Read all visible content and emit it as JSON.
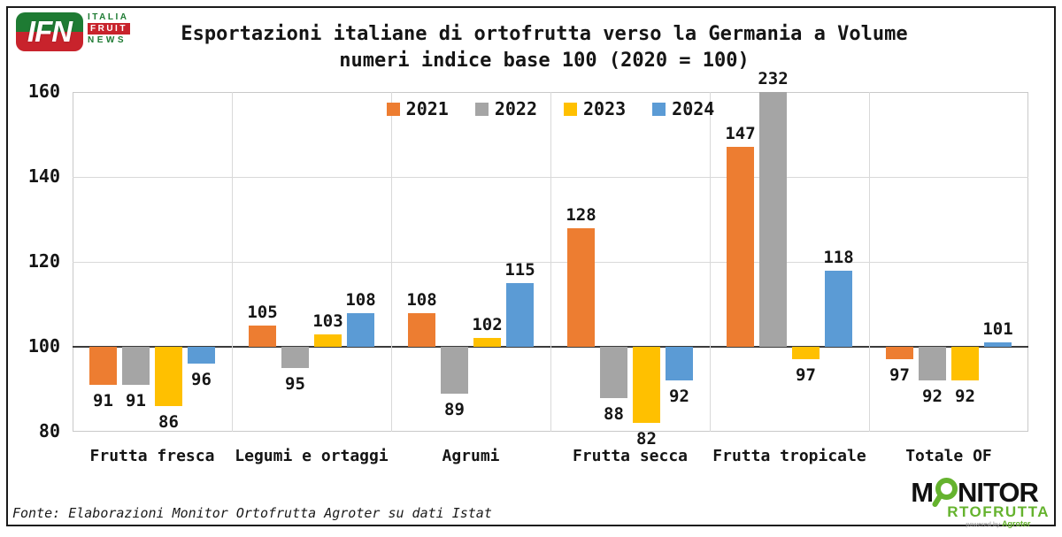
{
  "header": {
    "title_line1": "Esportazioni italiane di ortofrutta verso la Germania a Volume",
    "title_line2": "numeri indice base 100 (2020 = 100)",
    "ifn_logo": {
      "monogram": "IFN",
      "line1": "ITALIA",
      "line2": "FRUIT",
      "line3": "NEWS",
      "green": "#1e7b33",
      "red": "#c8232c"
    }
  },
  "chart_data": {
    "type": "bar",
    "title": "Esportazioni italiane di ortofrutta verso la Germania a Volume",
    "subtitle": "numeri indice base 100 (2020 = 100)",
    "categories": [
      "Frutta fresca",
      "Legumi e ortaggi",
      "Agrumi",
      "Frutta secca",
      "Frutta tropicale",
      "Totale OF"
    ],
    "series": [
      {
        "name": "2021",
        "color": "#ED7D31",
        "values": [
          91,
          105,
          108,
          128,
          147,
          97
        ]
      },
      {
        "name": "2022",
        "color": "#A5A5A5",
        "values": [
          91,
          95,
          89,
          88,
          232,
          92
        ]
      },
      {
        "name": "2023",
        "color": "#FFC000",
        "values": [
          86,
          103,
          102,
          82,
          97,
          92
        ]
      },
      {
        "name": "2024",
        "color": "#5B9BD5",
        "values": [
          96,
          108,
          115,
          92,
          118,
          101
        ]
      }
    ],
    "baseline": 100,
    "ylim": [
      80,
      160
    ],
    "yticks": [
      80,
      100,
      120,
      140,
      160
    ],
    "grid": true,
    "legend_position": "top-center",
    "note": "values below 100 drawn as bars hanging under the 100 baseline; 232 bar clipped at axis max 160"
  },
  "footer": {
    "source": "Fonte: Elaborazioni Monitor Ortofrutta Agroter su dati Istat",
    "monitor_logo": {
      "m": "M",
      "nitor": "NITOR",
      "row2": "RTOFRUTTA",
      "powered_by": "powered by",
      "brand": "Agroter",
      "green": "#65b32e"
    }
  }
}
